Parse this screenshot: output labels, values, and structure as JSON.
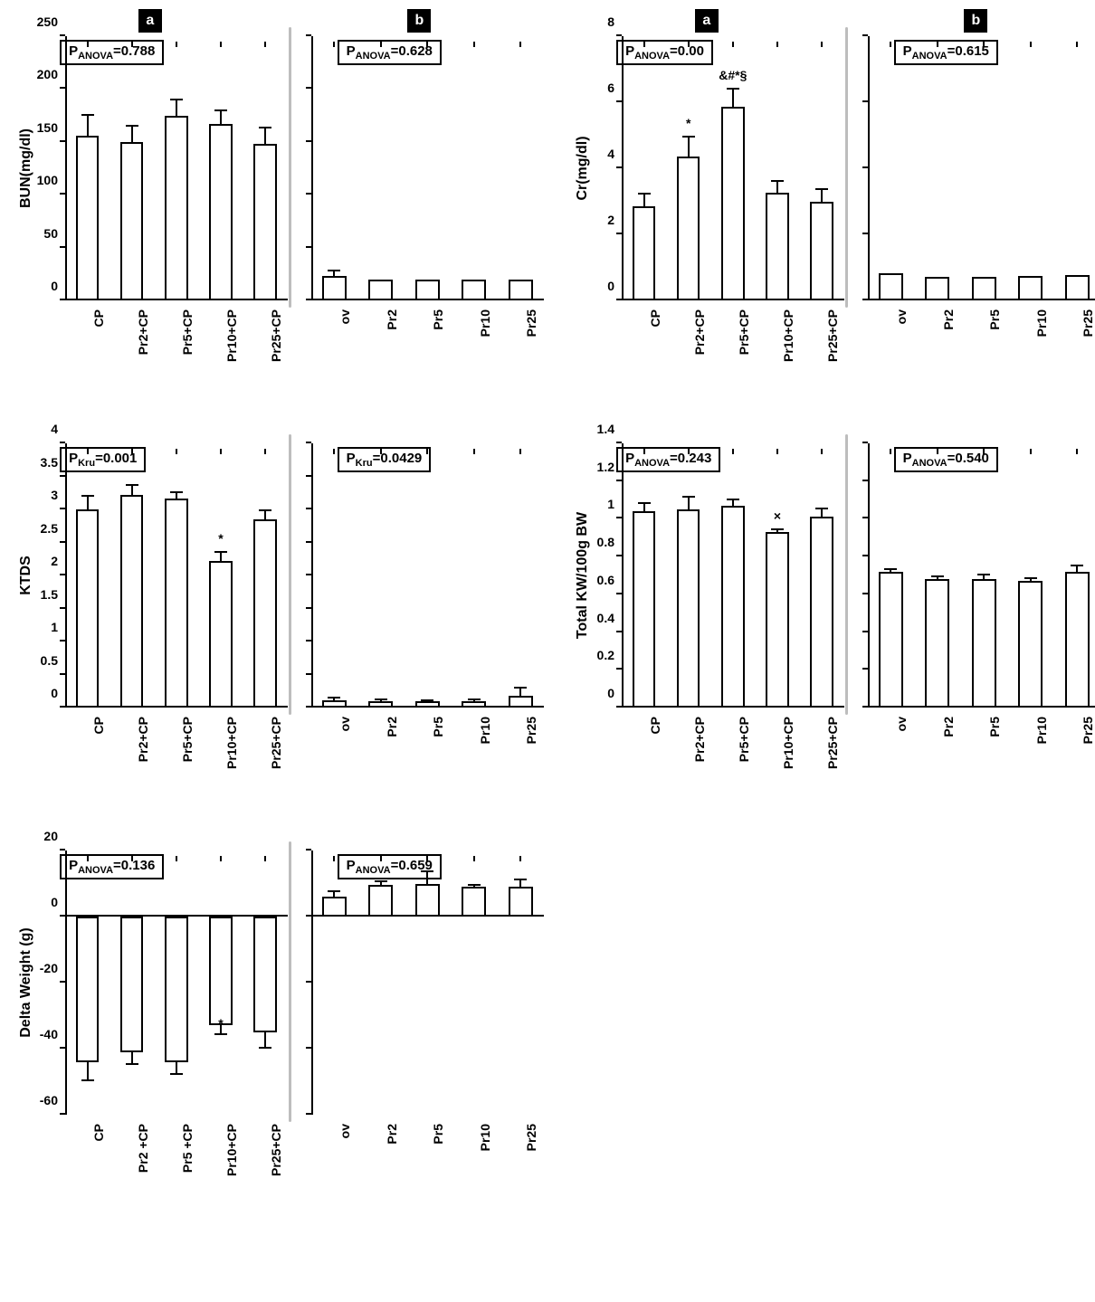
{
  "global": {
    "bar_fill": "#ffffff",
    "bar_border": "#000000",
    "axis_color": "#000000",
    "divider_color": "#bdbdbd",
    "font": "Arial",
    "label_fontsize": 14,
    "title_fontsize": 16,
    "letter_bg": "#000000",
    "letter_fg": "#ffffff"
  },
  "panels": [
    {
      "id": "bun",
      "ylabel": "BUN(mg/dl)",
      "a": {
        "letter": "a",
        "pstat": "ANOVA",
        "pval": "0.788",
        "ymin": 0,
        "ymax": 250,
        "ystep": 50,
        "cats": [
          "CP",
          "Pr2+CP",
          "Pr5+CP",
          "Pr10+CP",
          "Pr25+CP"
        ],
        "vals": [
          156,
          150,
          175,
          167,
          148
        ],
        "errs": [
          20,
          16,
          16,
          14,
          16
        ],
        "marks": [
          "",
          "",
          "",
          "",
          ""
        ]
      },
      "b": {
        "letter": "b",
        "pstat": "ANOVA",
        "pval": "0.628",
        "ymin": 0,
        "ymax": 250,
        "ystep": 50,
        "cats": [
          "ov",
          "Pr2",
          "Pr5",
          "Pr10",
          "Pr25"
        ],
        "vals": [
          23,
          20,
          20,
          20,
          20
        ],
        "errs": [
          6,
          0,
          0,
          0,
          0
        ],
        "marks": [
          "",
          "",
          "",
          "",
          ""
        ]
      }
    },
    {
      "id": "cr",
      "ylabel": "Cr(mg/dl)",
      "a": {
        "letter": "a",
        "pstat": "ANOVA",
        "pval": "0.00",
        "ymin": 0,
        "ymax": 8,
        "ystep": 2,
        "cats": [
          "CP",
          "Pr2+CP",
          "Pr5+CP",
          "Pr10+CP",
          "Pr25+CP"
        ],
        "vals": [
          2.85,
          4.35,
          5.85,
          3.25,
          3.0
        ],
        "errs": [
          0.4,
          0.65,
          0.6,
          0.4,
          0.4
        ],
        "marks": [
          "",
          "*",
          "&#*§",
          "",
          ""
        ]
      },
      "b": {
        "letter": "b",
        "pstat": "ANOVA",
        "pval": "0.615",
        "ymin": 0,
        "ymax": 8,
        "ystep": 2,
        "cats": [
          "ov",
          "Pr2",
          "Pr5",
          "Pr10",
          "Pr25"
        ],
        "vals": [
          0.82,
          0.7,
          0.72,
          0.74,
          0.76
        ],
        "errs": [
          0,
          0,
          0,
          0,
          0
        ],
        "marks": [
          "",
          "",
          "",
          "",
          ""
        ]
      }
    },
    {
      "id": "ktds",
      "ylabel": "KTDS",
      "a": {
        "letter": "",
        "pstat": "Kru",
        "pval": "0.001",
        "ymin": 0,
        "ymax": 4,
        "ystep": 0.5,
        "ylabels": [
          0,
          0.5,
          1,
          1.5,
          2,
          2.5,
          3,
          3.5,
          4
        ],
        "cats": [
          "CP",
          "Pr2+CP",
          "Pr5+CP",
          "Pr10+CP",
          "Pr25+CP"
        ],
        "vals": [
          3.0,
          3.22,
          3.17,
          2.22,
          2.85
        ],
        "errs": [
          0.22,
          0.17,
          0.1,
          0.15,
          0.15
        ],
        "marks": [
          "",
          "",
          "",
          "*",
          ""
        ]
      },
      "b": {
        "letter": "",
        "pstat": "Kru",
        "pval": "0.0429",
        "ymin": 0,
        "ymax": 4,
        "ystep": 0.5,
        "cats": [
          "ov",
          "Pr2",
          "Pr5",
          "Pr10",
          "Pr25"
        ],
        "vals": [
          0.11,
          0.1,
          0.09,
          0.1,
          0.18
        ],
        "errs": [
          0.05,
          0.04,
          0.04,
          0.04,
          0.14
        ],
        "marks": [
          "",
          "",
          "",
          "",
          ""
        ]
      }
    },
    {
      "id": "kw",
      "ylabel": "Total KW/100g BW",
      "a": {
        "letter": "",
        "pstat": "ANOVA",
        "pval": "0.243",
        "ymin": 0,
        "ymax": 1.4,
        "ystep": 0.2,
        "ylabels": [
          0,
          0.2,
          0.4,
          0.6,
          0.8,
          1,
          1.2,
          1.4
        ],
        "cats": [
          "CP",
          "Pr2+CP",
          "Pr5+CP",
          "Pr10+CP",
          "Pr25+CP"
        ],
        "vals": [
          1.04,
          1.05,
          1.07,
          0.93,
          1.01
        ],
        "errs": [
          0.05,
          0.07,
          0.04,
          0.02,
          0.05
        ],
        "marks": [
          "",
          "",
          "",
          "×",
          ""
        ]
      },
      "b": {
        "letter": "",
        "pstat": "ANOVA",
        "pval": "0.540",
        "ymin": 0,
        "ymax": 1.4,
        "ystep": 0.2,
        "cats": [
          "ov",
          "Pr2",
          "Pr5",
          "Pr10",
          "Pr25"
        ],
        "vals": [
          0.72,
          0.68,
          0.68,
          0.67,
          0.72
        ],
        "errs": [
          0.02,
          0.02,
          0.03,
          0.02,
          0.04
        ],
        "marks": [
          "",
          "",
          "",
          "",
          ""
        ]
      }
    },
    {
      "id": "dw",
      "ylabel": "Delta Weight (g)",
      "a": {
        "letter": "",
        "pstat": "ANOVA",
        "pval": "0.136",
        "ymin": -60,
        "ymax": 20,
        "ystep": 20,
        "ylabels": [
          -60,
          -40,
          -20,
          0,
          20
        ],
        "cats": [
          "CP",
          "Pr2 +CP",
          "Pr5 +CP",
          "Pr10+CP",
          "Pr25+CP"
        ],
        "vals": [
          -44,
          -41,
          -44,
          -33,
          -35
        ],
        "errs": [
          6,
          4,
          4,
          3,
          5
        ],
        "marks": [
          "",
          "",
          "",
          "*",
          ""
        ],
        "err_dir": "down"
      },
      "b": {
        "letter": "",
        "pstat": "ANOVA",
        "pval": "0.659",
        "ymin": -60,
        "ymax": 20,
        "ystep": 20,
        "cats": [
          "ov",
          "Pr2",
          "Pr5",
          "Pr10",
          "Pr25"
        ],
        "vals": [
          6,
          9.5,
          10,
          9,
          9
        ],
        "errs": [
          2,
          1.5,
          4,
          1,
          2.5
        ],
        "marks": [
          "",
          "",
          "",
          "",
          ""
        ]
      }
    }
  ]
}
